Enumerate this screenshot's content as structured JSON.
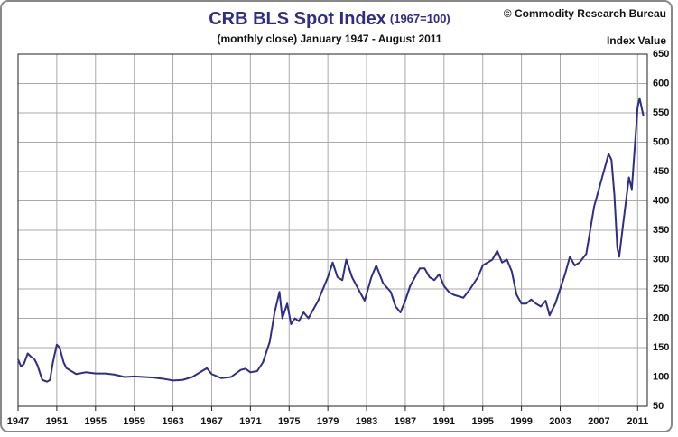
{
  "chart_data": {
    "type": "line",
    "title": "CRB BLS Spot Index",
    "title_note": "(1967=100)",
    "subtitle": "(monthly close) January 1947 - August 2011",
    "source": "© Commodity Research Bureau",
    "y_label": "Index Value",
    "xlim": [
      1947,
      2012
    ],
    "xticks": [
      1947,
      1951,
      1955,
      1959,
      1963,
      1967,
      1971,
      1975,
      1979,
      1983,
      1987,
      1991,
      1995,
      1999,
      2003,
      2007,
      2011
    ],
    "ylim": [
      50,
      650
    ],
    "yticks": [
      50,
      100,
      150,
      200,
      250,
      300,
      350,
      400,
      450,
      500,
      550,
      600,
      650
    ],
    "grid": true,
    "series": [
      {
        "name": "CRB BLS Spot Index",
        "color": "#2e2e8a",
        "x": [
          1947.0,
          1947.3,
          1947.6,
          1948.0,
          1948.3,
          1948.7,
          1949.0,
          1949.5,
          1950.0,
          1950.3,
          1950.6,
          1951.0,
          1951.3,
          1951.7,
          1952.0,
          1952.5,
          1953,
          1954,
          1955,
          1956,
          1957,
          1958,
          1959,
          1960,
          1961,
          1962,
          1963,
          1964,
          1965,
          1966,
          1966.5,
          1967,
          1968,
          1969,
          1970,
          1970.5,
          1971,
          1971.7,
          1972.3,
          1973,
          1973.5,
          1974.0,
          1974.3,
          1974.8,
          1975.2,
          1975.6,
          1976,
          1976.5,
          1977,
          1977.5,
          1978,
          1979,
          1979.5,
          1980,
          1980.5,
          1980.9,
          1981.5,
          1982.3,
          1982.8,
          1983.5,
          1984.0,
          1984.7,
          1985.5,
          1986,
          1986.5,
          1987,
          1987.5,
          1988,
          1988.5,
          1989,
          1989.5,
          1990,
          1990.5,
          1991,
          1991.5,
          1992,
          1993,
          1993.7,
          1994.5,
          1995,
          1996,
          1996.5,
          1997,
          1997.5,
          1998,
          1998.5,
          1999,
          1999.5,
          2000,
          2000.5,
          2001,
          2001.5,
          2001.9,
          2002.5,
          2003,
          2003.5,
          2004,
          2004.5,
          2005,
          2005.7,
          2006,
          2006.5,
          2007,
          2007.5,
          2008.0,
          2008.3,
          2008.6,
          2008.9,
          2009.1,
          2009.5,
          2009.8,
          2010.1,
          2010.4,
          2010.7,
          2011.0,
          2011.2,
          2011.4,
          2011.6
        ],
        "values": [
          130,
          118,
          122,
          140,
          135,
          130,
          120,
          95,
          92,
          95,
          125,
          155,
          150,
          125,
          115,
          110,
          105,
          108,
          106,
          106,
          104,
          100,
          101,
          100,
          99,
          97,
          94,
          95,
          100,
          110,
          115,
          105,
          98,
          100,
          112,
          114,
          108,
          110,
          125,
          160,
          210,
          245,
          200,
          225,
          190,
          200,
          195,
          210,
          200,
          215,
          230,
          270,
          295,
          270,
          265,
          300,
          270,
          245,
          230,
          270,
          290,
          260,
          245,
          220,
          210,
          230,
          255,
          270,
          285,
          285,
          270,
          265,
          275,
          255,
          245,
          240,
          235,
          250,
          270,
          290,
          300,
          315,
          295,
          300,
          280,
          240,
          225,
          225,
          232,
          225,
          220,
          230,
          205,
          225,
          250,
          275,
          305,
          290,
          295,
          310,
          340,
          390,
          420,
          450,
          480,
          470,
          410,
          320,
          305,
          360,
          400,
          440,
          420,
          490,
          560,
          575,
          560,
          545
        ]
      }
    ]
  }
}
